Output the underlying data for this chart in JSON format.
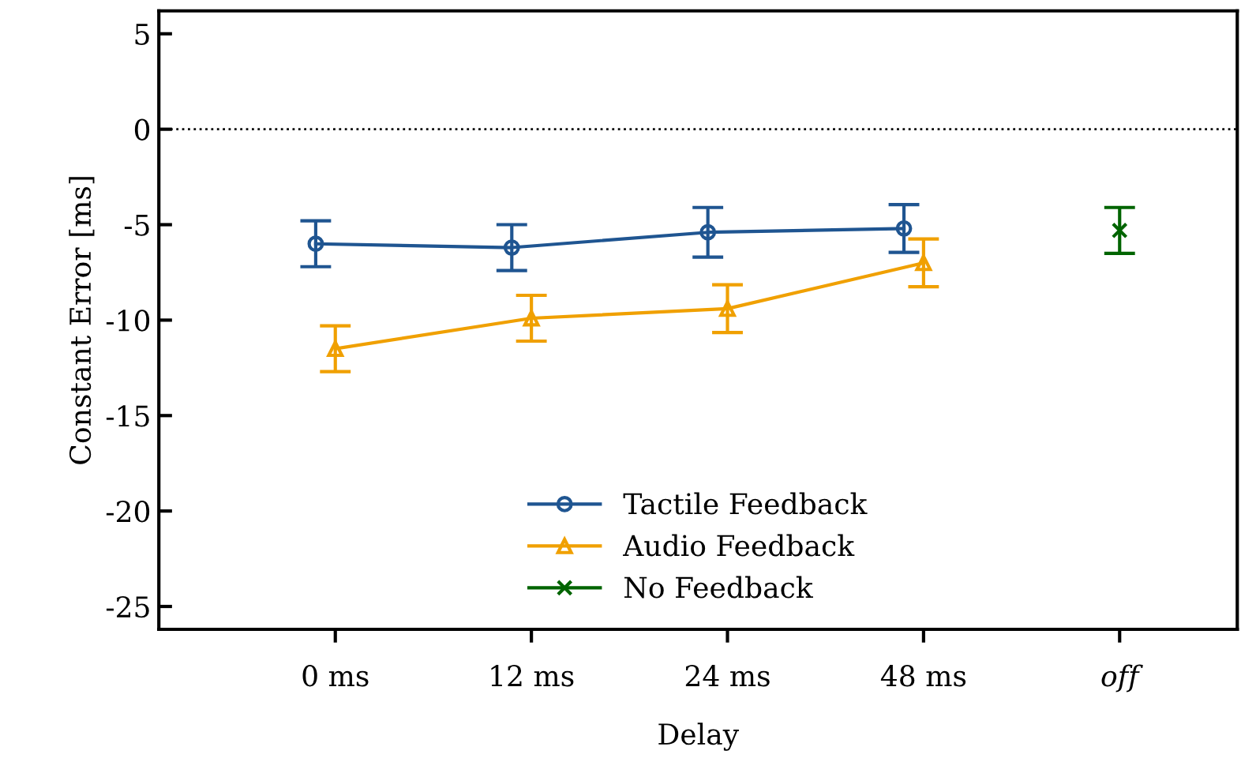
{
  "chart_data": {
    "type": "line",
    "xlabel": "Delay",
    "ylabel": "Constant Error [ms]",
    "categories": [
      "0 ms",
      "12 ms",
      "24 ms",
      "48 ms",
      "off"
    ],
    "series": [
      {
        "name": "Tactile Feedback",
        "color": "#1f5591",
        "marker": "circle",
        "values": [
          -6.0,
          -6.2,
          -5.4,
          -5.2,
          null
        ],
        "errors": [
          1.2,
          1.2,
          1.3,
          1.25,
          null
        ]
      },
      {
        "name": "Audio Feedback",
        "color": "#f0a000",
        "marker": "triangle",
        "values": [
          -11.5,
          -9.9,
          -9.4,
          -7.0,
          null
        ],
        "errors": [
          1.2,
          1.2,
          1.25,
          1.25,
          null
        ]
      },
      {
        "name": "No Feedback",
        "color": "#006400",
        "marker": "cross",
        "values": [
          null,
          null,
          null,
          null,
          -5.3
        ],
        "errors": [
          null,
          null,
          null,
          null,
          1.2
        ]
      }
    ],
    "ylim": [
      -26.2,
      6.2
    ],
    "yticks": [
      -25,
      -20,
      -15,
      -10,
      -5,
      0,
      5
    ],
    "ref_lines": [
      {
        "axis": "y",
        "value": 0,
        "line_style": "dotted",
        "color": "#000000"
      }
    ],
    "legend": "bottom",
    "grid": false
  }
}
